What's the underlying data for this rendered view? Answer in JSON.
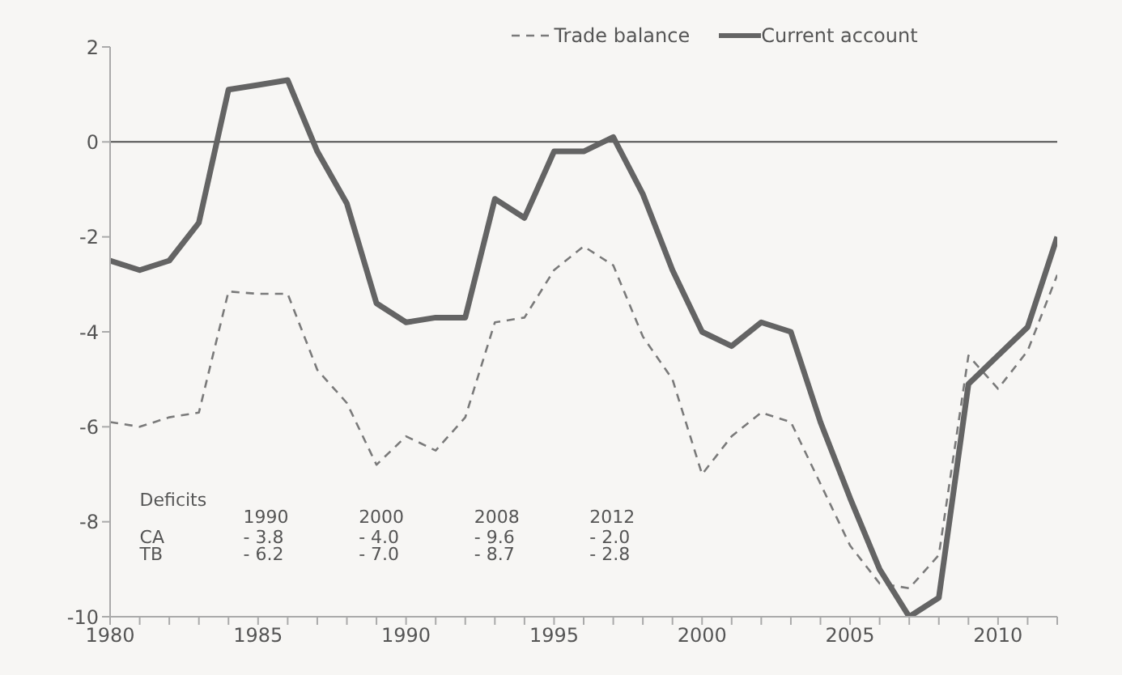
{
  "chart_data": {
    "type": "line",
    "x": [
      1980,
      1981,
      1982,
      1983,
      1984,
      1985,
      1986,
      1987,
      1988,
      1989,
      1990,
      1991,
      1992,
      1993,
      1994,
      1995,
      1996,
      1997,
      1998,
      1999,
      2000,
      2001,
      2002,
      2003,
      2004,
      2005,
      2006,
      2007,
      2008,
      2009,
      2010,
      2011,
      2012
    ],
    "series": [
      {
        "name": "Trade balance",
        "color": "#7a7a7a",
        "line_style": "dashed",
        "values": [
          -5.9,
          -6.0,
          -5.8,
          -5.7,
          -3.15,
          -3.2,
          -3.2,
          -4.8,
          -5.5,
          -6.8,
          -6.2,
          -6.5,
          -5.8,
          -3.8,
          -3.7,
          -2.7,
          -2.2,
          -2.6,
          -4.1,
          -5.0,
          -7.0,
          -6.2,
          -5.7,
          -5.9,
          -7.2,
          -8.5,
          -9.3,
          -9.4,
          -8.7,
          -4.5,
          -5.2,
          -4.4,
          -2.8
        ]
      },
      {
        "name": "Current account",
        "color": "#646464",
        "line_style": "solid",
        "values": [
          -2.5,
          -2.7,
          -2.5,
          -1.7,
          1.1,
          1.2,
          1.3,
          -0.2,
          -1.3,
          -3.4,
          -3.8,
          -3.7,
          -3.7,
          -1.2,
          -1.6,
          -0.2,
          -0.2,
          0.1,
          -1.1,
          -2.7,
          -4.0,
          -4.3,
          -3.8,
          -4.0,
          -5.9,
          -7.5,
          -9.0,
          -10.0,
          -9.6,
          -5.1,
          -4.5,
          -3.9,
          -2.0
        ]
      }
    ],
    "xlim": [
      1980,
      2012
    ],
    "xticks": [
      1980,
      {
        "value": 1981,
        "label": null
      },
      {
        "value": 1982,
        "label": null
      },
      {
        "value": 1983,
        "label": null
      },
      {
        "value": 1984,
        "label": null
      },
      1985,
      {
        "value": 1986,
        "label": null
      },
      {
        "value": 1987,
        "label": null
      },
      {
        "value": 1988,
        "label": null
      },
      {
        "value": 1989,
        "label": null
      },
      1990,
      {
        "value": 1991,
        "label": null
      },
      {
        "value": 1992,
        "label": null
      },
      {
        "value": 1993,
        "label": null
      },
      {
        "value": 1994,
        "label": null
      },
      1995,
      {
        "value": 1996,
        "label": null
      },
      {
        "value": 1997,
        "label": null
      },
      {
        "value": 1998,
        "label": null
      },
      {
        "value": 1999,
        "label": null
      },
      2000,
      {
        "value": 2001,
        "label": null
      },
      {
        "value": 2002,
        "label": null
      },
      {
        "value": 2003,
        "label": null
      },
      {
        "value": 2004,
        "label": null
      },
      2005,
      {
        "value": 2006,
        "label": null
      },
      {
        "value": 2007,
        "label": null
      },
      {
        "value": 2008,
        "label": null
      },
      {
        "value": 2009,
        "label": null
      },
      2010,
      {
        "value": 2011,
        "label": null
      },
      {
        "value": 2012,
        "label": null
      }
    ],
    "ylim": [
      -10,
      2
    ],
    "yticks": [
      -10,
      -8,
      -6,
      -4,
      -2,
      0,
      2
    ],
    "ref_lines": [
      {
        "axis": "y",
        "value": 0,
        "color": "#505050"
      }
    ],
    "annotations": [
      "Deficits",
      "1990",
      "2000",
      "2008",
      "2012",
      "CA",
      "- 3.8",
      "- 4.0",
      "- 9.6",
      "- 2.0",
      "TB",
      "- 6.2",
      "- 7.0",
      "- 8.7",
      "- 2.8"
    ],
    "legend": "top",
    "grid": false,
    "marker": "none"
  }
}
